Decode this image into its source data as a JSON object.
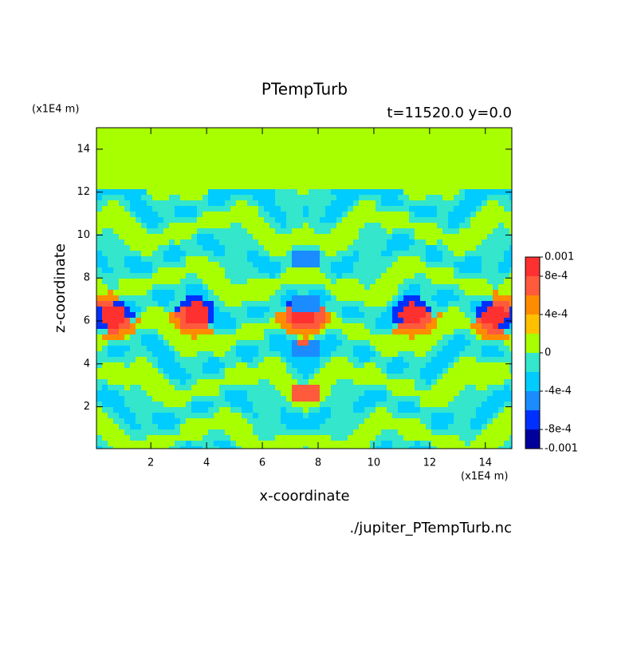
{
  "chart_data": {
    "type": "contour",
    "title": "PTempTurb",
    "subtitle": "t=11520.0 y=0.0",
    "x_label": "x-coordinate",
    "y_label": "z-coordinate",
    "x_units": "(x1E4 m)",
    "y_units": "(x1E4 m)",
    "footer": "./jupiter_PTempTurb.nc",
    "xlim": [
      0.05,
      14.95
    ],
    "xticks": [
      2,
      4,
      6,
      8,
      10,
      12,
      14
    ],
    "ylim": [
      0.05,
      15
    ],
    "yticks": [
      2,
      4,
      6,
      8,
      10,
      12,
      14
    ],
    "colorbar": {
      "lim": [
        -0.001,
        0.001
      ],
      "ticks": [
        {
          "value": 0.001,
          "label": "0.001"
        },
        {
          "value": 0.0008,
          "label": "8e-4"
        },
        {
          "value": 0.0004,
          "label": "4e-4"
        },
        0,
        {
          "value": -0.0004,
          "label": "-4e-4"
        },
        {
          "value": -0.0008,
          "label": "-8e-4"
        },
        {
          "value": -0.001,
          "label": "-0.001"
        }
      ],
      "colors": [
        "#00009c",
        "#0030ff",
        "#1a8cff",
        "#00ccff",
        "#33e6cc",
        "#a8ff00",
        "#ffc000",
        "#ff8c00",
        "#ff5a3c",
        "#ff3030"
      ]
    }
  }
}
